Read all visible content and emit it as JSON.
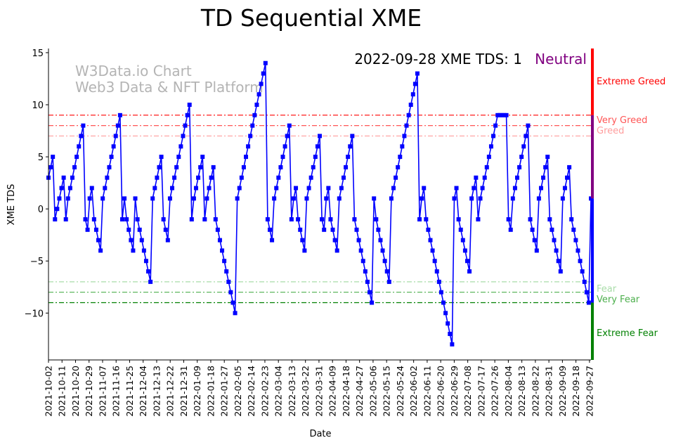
{
  "chart_data": {
    "type": "line",
    "title": "TD Sequential XME",
    "xlabel": "Date",
    "ylabel": "XME TDS",
    "ylim": [
      -14.5,
      15.4
    ],
    "yticks": [
      -10,
      -5,
      0,
      5,
      10,
      15
    ],
    "x_start": "2021-10-02",
    "x_end": "2022-09-28",
    "xtick_labels": [
      "2021-10-02",
      "2021-10-11",
      "2021-10-20",
      "2021-10-29",
      "2021-11-07",
      "2021-11-16",
      "2021-11-25",
      "2021-12-04",
      "2021-12-13",
      "2021-12-22",
      "2021-12-31",
      "2022-01-09",
      "2022-01-18",
      "2022-01-27",
      "2022-02-05",
      "2022-02-14",
      "2022-02-23",
      "2022-03-04",
      "2022-03-13",
      "2022-03-22",
      "2022-03-31",
      "2022-04-09",
      "2022-04-18",
      "2022-04-27",
      "2022-05-06",
      "2022-05-15",
      "2022-05-24",
      "2022-06-02",
      "2022-06-11",
      "2022-06-20",
      "2022-06-29",
      "2022-07-08",
      "2022-07-17",
      "2022-07-26",
      "2022-08-04",
      "2022-08-13",
      "2022-08-22",
      "2022-08-31",
      "2022-09-09",
      "2022-09-18",
      "2022-09-27"
    ],
    "series": [
      {
        "name": "XME TDS",
        "color": "#0000ff",
        "values": [
          3,
          4,
          5,
          -1,
          0,
          1,
          2,
          3,
          -1,
          1,
          2,
          3,
          4,
          5,
          6,
          7,
          8,
          -1,
          -2,
          1,
          2,
          -1,
          -2,
          -3,
          -4,
          1,
          2,
          3,
          4,
          5,
          6,
          7,
          8,
          9,
          -1,
          1,
          -1,
          -2,
          -3,
          -4,
          1,
          -1,
          -2,
          -3,
          -4,
          -5,
          -6,
          -7,
          1,
          2,
          3,
          4,
          5,
          -1,
          -2,
          -3,
          1,
          2,
          3,
          4,
          5,
          6,
          7,
          8,
          9,
          10,
          -1,
          1,
          2,
          3,
          4,
          5,
          -1,
          1,
          2,
          3,
          4,
          -1,
          -2,
          -3,
          -4,
          -5,
          -6,
          -7,
          -8,
          -9,
          -10,
          1,
          2,
          3,
          4,
          5,
          6,
          7,
          8,
          9,
          10,
          11,
          12,
          13,
          14,
          -1,
          -2,
          -3,
          1,
          2,
          3,
          4,
          5,
          6,
          7,
          8,
          -1,
          1,
          2,
          -1,
          -2,
          -3,
          -4,
          1,
          2,
          3,
          4,
          5,
          6,
          7,
          -1,
          -2,
          1,
          2,
          -1,
          -2,
          -3,
          -4,
          1,
          2,
          3,
          4,
          5,
          6,
          7,
          -1,
          -2,
          -3,
          -4,
          -5,
          -6,
          -7,
          -8,
          -9,
          1,
          -1,
          -2,
          -3,
          -4,
          -5,
          -6,
          -7,
          1,
          2,
          3,
          4,
          5,
          6,
          7,
          8,
          9,
          10,
          11,
          12,
          13,
          -1,
          1,
          2,
          -1,
          -2,
          -3,
          -4,
          -5,
          -6,
          -7,
          -8,
          -9,
          -10,
          -11,
          -12,
          -13,
          1,
          2,
          -1,
          -2,
          -3,
          -4,
          -5,
          -6,
          1,
          2,
          3,
          -1,
          1,
          2,
          3,
          4,
          5,
          6,
          7,
          8,
          9,
          9,
          9,
          9,
          9,
          -1,
          -2,
          1,
          2,
          3,
          4,
          5,
          6,
          7,
          8,
          -1,
          -2,
          -3,
          -4,
          1,
          2,
          3,
          4,
          5,
          -1,
          -2,
          -3,
          -4,
          -5,
          -6,
          1,
          2,
          3,
          4,
          -1,
          -2,
          -3,
          -4,
          -5,
          -6,
          -7,
          -8,
          -9,
          1
        ]
      }
    ],
    "reference_lines": [
      {
        "label": "Extreme Greed",
        "y": 9,
        "color": "#ff0000"
      },
      {
        "label": "Very Greed",
        "y": 8,
        "color": "#ff5555"
      },
      {
        "label": "Greed",
        "y": 7,
        "color": "#ff9d9d"
      },
      {
        "label": "Fear",
        "y": -7,
        "color": "#a8dca8"
      },
      {
        "label": "Very Fear",
        "y": -8,
        "color": "#4caf4c"
      },
      {
        "label": "Extreme Fear",
        "y": -9,
        "color": "#008000"
      }
    ],
    "side_labels": {
      "extreme_greed": "Extreme Greed",
      "very_greed": "Very Greed",
      "greed": "Greed",
      "fear": "Fear",
      "very_fear": "Very Fear",
      "extreme_fear": "Extreme Fear"
    },
    "status": {
      "date_text": "2022-09-28 XME TDS: 1",
      "state": "Neutral",
      "state_color": "#800080"
    },
    "watermark": {
      "line1": "W3Data.io Chart",
      "line2": "Web3 Data & NFT Platform"
    }
  }
}
